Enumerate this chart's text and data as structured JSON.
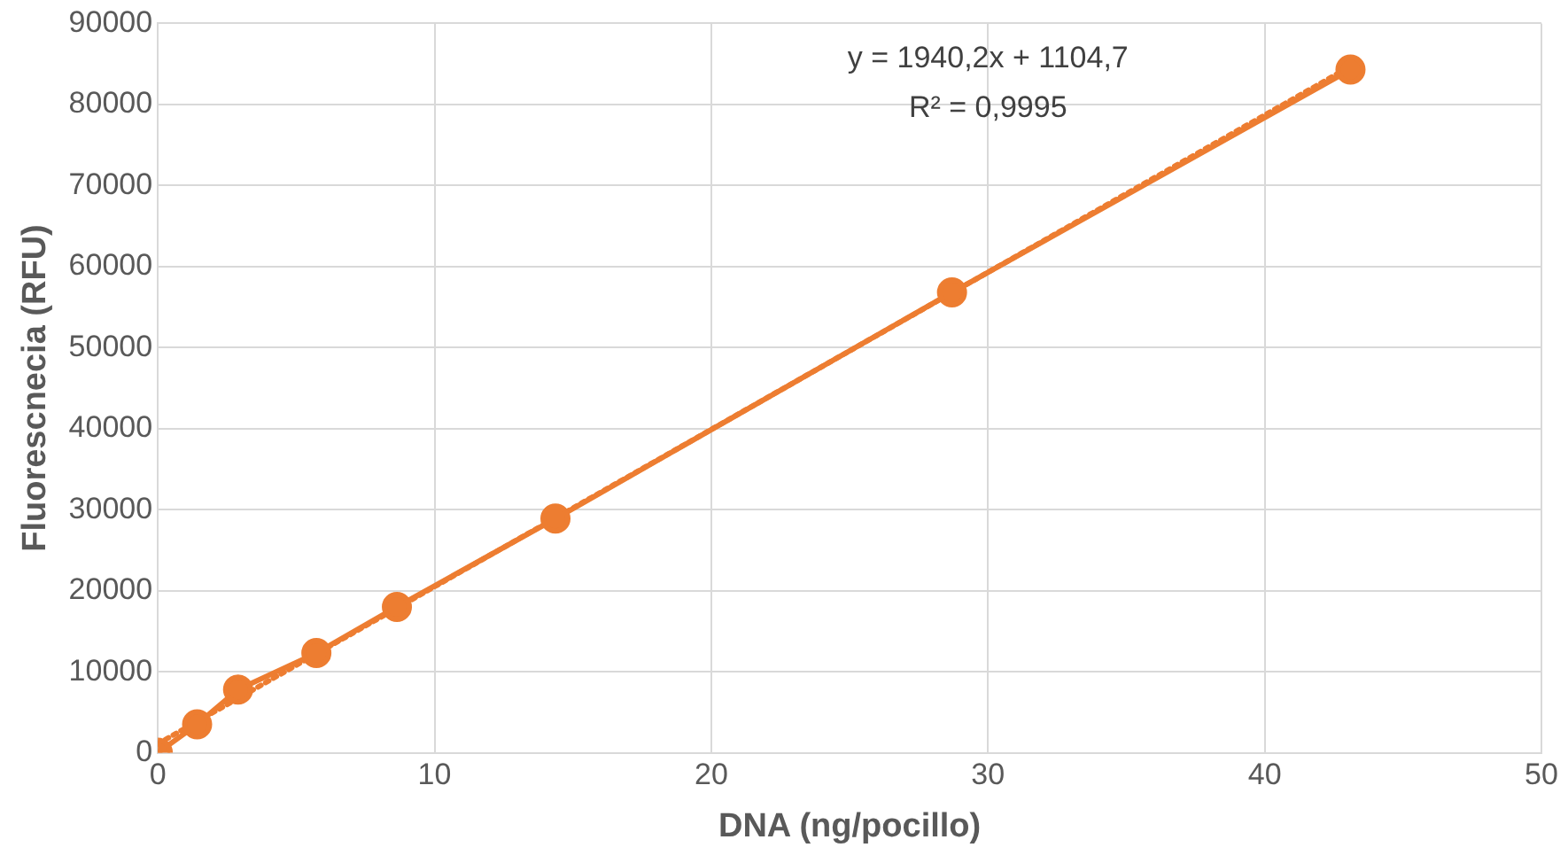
{
  "chart_data": {
    "type": "scatter",
    "xlabel": "DNA (ng/pocillo)",
    "ylabel": "Fluorescnecia (RFU)",
    "series": [
      {
        "type": "line",
        "color": "#ed7d31",
        "x": [
          0,
          1.42,
          2.9,
          5.73,
          8.64,
          14.37,
          28.7,
          43.1
        ],
        "values": [
          0,
          3500,
          7800,
          12300,
          18000,
          28900,
          56800,
          84300
        ],
        "marker": "circle",
        "line_style": "solid"
      },
      {
        "type": "line",
        "color": "#ed7d31",
        "x": [
          0,
          43.1
        ],
        "values": [
          1100,
          84700
        ],
        "marker": "none",
        "line_style": "dotted"
      }
    ],
    "xlim": [
      0,
      50
    ],
    "xticks": [
      0,
      10,
      20,
      30,
      40,
      50
    ],
    "ylim": [
      0,
      90000
    ],
    "yticks": [
      0,
      10000,
      20000,
      30000,
      40000,
      50000,
      60000,
      70000,
      80000,
      90000
    ],
    "grid": true,
    "legend": false,
    "annotations": [
      "y = 1940,2x + 1104,7",
      "R² = 0,9995"
    ]
  }
}
